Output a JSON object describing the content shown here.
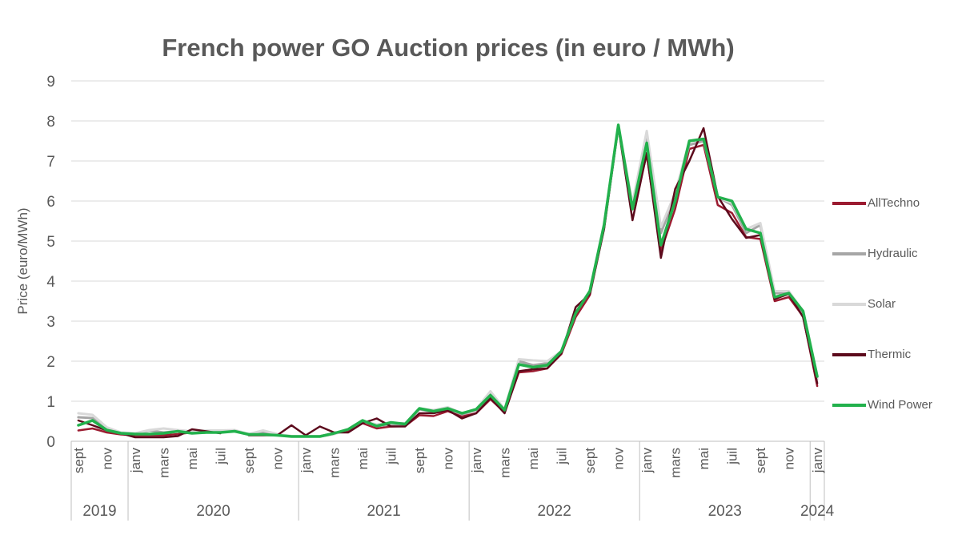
{
  "chart_data": {
    "type": "line",
    "title": "French power GO Auction prices (in euro / MWh)",
    "ylabel": "Price (euro/MWh)",
    "xlabel": "",
    "ylim": [
      0,
      9
    ],
    "yticks": [
      0,
      1,
      2,
      3,
      4,
      5,
      6,
      7,
      8,
      9
    ],
    "grid": true,
    "legend_position": "right",
    "x": [
      "2019-09",
      "2019-10",
      "2019-11",
      "2019-12",
      "2020-01",
      "2020-02",
      "2020-03",
      "2020-04",
      "2020-05",
      "2020-06",
      "2020-07",
      "2020-08",
      "2020-09",
      "2020-10",
      "2020-11",
      "2020-12",
      "2021-01",
      "2021-02",
      "2021-03",
      "2021-04",
      "2021-05",
      "2021-06",
      "2021-07",
      "2021-08",
      "2021-09",
      "2021-10",
      "2021-11",
      "2021-12",
      "2022-01",
      "2022-02",
      "2022-03",
      "2022-04",
      "2022-05",
      "2022-06",
      "2022-07",
      "2022-08",
      "2022-09",
      "2022-10",
      "2022-11",
      "2022-12",
      "2023-01",
      "2023-02",
      "2023-03",
      "2023-04",
      "2023-05",
      "2023-06",
      "2023-07",
      "2023-08",
      "2023-09",
      "2023-10",
      "2023-11",
      "2023-12",
      "2024-01"
    ],
    "x_tick_labels": [
      "sept",
      "",
      "nov",
      "",
      "janv",
      "",
      "mars",
      "",
      "mai",
      "",
      "juil",
      "",
      "sept",
      "",
      "nov",
      "",
      "janv",
      "",
      "mars",
      "",
      "mai",
      "",
      "juil",
      "",
      "sept",
      "",
      "nov",
      "",
      "janv",
      "",
      "mars",
      "",
      "mai",
      "",
      "juil",
      "",
      "sept",
      "",
      "nov",
      "",
      "janv",
      "",
      "mars",
      "",
      "mai",
      "",
      "juil",
      "",
      "sept",
      "",
      "nov",
      "",
      "janv"
    ],
    "year_groups": [
      {
        "label": "2019",
        "start": 0,
        "end": 3
      },
      {
        "label": "2020",
        "start": 4,
        "end": 15
      },
      {
        "label": "2021",
        "start": 16,
        "end": 27
      },
      {
        "label": "2022",
        "start": 28,
        "end": 39
      },
      {
        "label": "2023",
        "start": 40,
        "end": 51
      },
      {
        "label": "2024",
        "start": 52,
        "end": 52
      }
    ],
    "series": [
      {
        "name": "AllTechno",
        "color": "#9B1B30",
        "width": 2.5,
        "values": [
          0.27,
          0.32,
          0.22,
          0.17,
          0.15,
          0.15,
          0.15,
          0.18,
          0.22,
          0.22,
          0.22,
          null,
          0.17,
          0.17,
          0.15,
          0.12,
          0.12,
          0.13,
          0.2,
          0.27,
          0.45,
          0.32,
          0.37,
          0.38,
          0.65,
          0.63,
          0.75,
          0.62,
          0.7,
          1.05,
          0.72,
          1.72,
          1.75,
          1.82,
          2.18,
          3.1,
          3.65,
          5.32,
          7.88,
          5.8,
          7.15,
          4.75,
          5.8,
          7.3,
          7.4,
          5.9,
          5.7,
          5.1,
          5.05,
          3.5,
          3.6,
          3.12,
          1.38
        ]
      },
      {
        "name": "Hydraulic",
        "color": "#A6A6A6",
        "width": 3,
        "values": [
          0.6,
          0.58,
          0.28,
          0.2,
          0.18,
          0.27,
          0.22,
          0.25,
          0.2,
          0.25,
          0.25,
          0.25,
          0.18,
          0.23,
          0.17,
          0.12,
          0.12,
          0.12,
          0.18,
          0.3,
          0.5,
          0.38,
          0.42,
          0.42,
          0.8,
          0.73,
          0.83,
          0.67,
          0.78,
          1.2,
          0.8,
          2.0,
          1.9,
          1.95,
          2.25,
          3.2,
          3.75,
          5.4,
          7.85,
          5.9,
          7.6,
          5.2,
          6.1,
          7.4,
          7.5,
          6.1,
          5.9,
          5.2,
          5.4,
          3.7,
          3.7,
          3.2,
          1.55
        ]
      },
      {
        "name": "Solar",
        "color": "#D9D9D9",
        "width": 3,
        "values": [
          0.7,
          0.66,
          0.35,
          0.22,
          0.2,
          0.28,
          0.32,
          0.28,
          0.25,
          0.27,
          0.27,
          0.28,
          0.18,
          0.27,
          0.18,
          0.13,
          0.13,
          0.13,
          0.18,
          0.3,
          0.5,
          0.42,
          0.45,
          0.45,
          0.82,
          0.78,
          0.85,
          0.7,
          0.8,
          1.25,
          0.8,
          2.05,
          2.02,
          2.0,
          2.25,
          3.25,
          3.75,
          5.45,
          7.85,
          5.95,
          7.75,
          5.35,
          6.2,
          7.5,
          7.55,
          6.1,
          5.95,
          5.3,
          5.45,
          3.75,
          3.75,
          3.25,
          1.55
        ]
      },
      {
        "name": "Thermic",
        "color": "#5C0A1C",
        "width": 2.5,
        "values": [
          0.52,
          0.4,
          0.27,
          0.2,
          0.1,
          0.1,
          0.1,
          0.13,
          0.3,
          0.25,
          0.2,
          null,
          0.15,
          0.15,
          0.15,
          0.4,
          0.15,
          0.37,
          0.22,
          0.22,
          0.45,
          0.57,
          0.37,
          0.37,
          0.7,
          0.7,
          0.78,
          0.57,
          0.7,
          1.08,
          0.7,
          1.75,
          1.8,
          1.82,
          2.2,
          3.35,
          3.68,
          5.3,
          7.85,
          5.52,
          7.2,
          4.58,
          6.3,
          7.0,
          7.82,
          6.12,
          5.55,
          5.08,
          5.15,
          3.55,
          3.68,
          3.1,
          1.45
        ]
      },
      {
        "name": "Wind Power",
        "color": "#22B14C",
        "width": 3.5,
        "values": [
          0.4,
          0.52,
          0.28,
          0.2,
          0.18,
          0.18,
          0.2,
          0.25,
          0.2,
          0.22,
          0.22,
          0.25,
          0.17,
          0.17,
          0.15,
          0.12,
          0.12,
          0.12,
          0.2,
          0.3,
          0.52,
          0.38,
          0.47,
          0.43,
          0.82,
          0.75,
          0.82,
          0.7,
          0.8,
          1.15,
          0.78,
          1.92,
          1.85,
          1.9,
          2.25,
          3.2,
          3.75,
          5.4,
          7.9,
          5.8,
          7.45,
          4.9,
          6.0,
          7.5,
          7.55,
          6.1,
          6.0,
          5.3,
          5.2,
          3.6,
          3.7,
          3.25,
          1.62
        ]
      }
    ]
  }
}
